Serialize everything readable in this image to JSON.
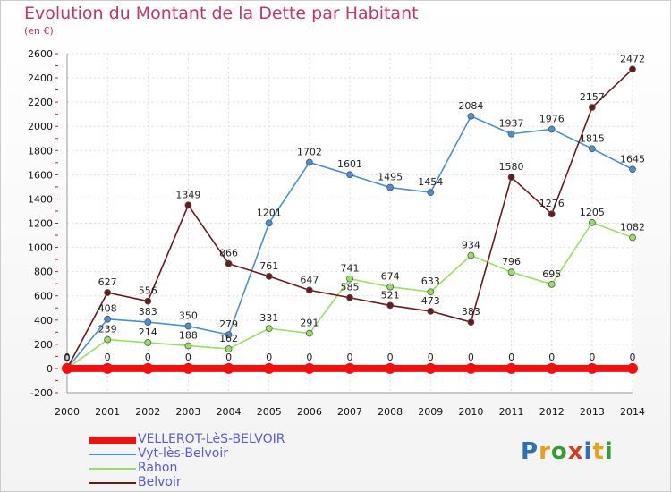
{
  "title": "Evolution du Montant de la Dette par Habitant",
  "subtitle": "(en €)",
  "logo": {
    "text": "Proxiti",
    "letter_colors": [
      "#2f6fb5",
      "#e8a020",
      "#3a9a3a",
      "#d04020",
      "#2f6fb5",
      "#e8a020",
      "#3a9a3a"
    ]
  },
  "chart_data": {
    "type": "line",
    "title": "Evolution du Montant de la Dette par Habitant",
    "subtitle": "(en €)",
    "xlabel": "",
    "ylabel": "",
    "x": [
      "2000",
      "2001",
      "2002",
      "2003",
      "2004",
      "2005",
      "2006",
      "2007",
      "2008",
      "2009",
      "2010",
      "2011",
      "2012",
      "2013",
      "2014"
    ],
    "ylim": [
      -200,
      2600
    ],
    "yticks": [
      -200,
      0,
      200,
      400,
      600,
      800,
      1000,
      1200,
      1400,
      1600,
      1800,
      2000,
      2200,
      2400,
      2600
    ],
    "grid": true,
    "legend_position": "bottom-left",
    "series": [
      {
        "name": "VELLEROT-LèS-BELVOIR",
        "color": "#ee1111",
        "values": [
          0,
          0,
          0,
          0,
          0,
          0,
          0,
          0,
          0,
          0,
          0,
          0,
          0,
          0,
          0
        ]
      },
      {
        "name": "Vyt-lès-Belvoir",
        "color": "#4d8fd1",
        "values": [
          0,
          408,
          383,
          350,
          279,
          1201,
          1702,
          1601,
          1495,
          1454,
          2084,
          1937,
          1976,
          1815,
          1645
        ]
      },
      {
        "name": "Rahon",
        "color": "#99dd66",
        "values": [
          0,
          239,
          214,
          188,
          162,
          331,
          291,
          741,
          674,
          633,
          934,
          796,
          695,
          1205,
          1082
        ]
      },
      {
        "name": "Belvoir",
        "color": "#6b1a1a",
        "values": [
          0,
          627,
          556,
          1349,
          866,
          761,
          647,
          585,
          521,
          473,
          383,
          1580,
          1276,
          2157,
          2472
        ]
      }
    ]
  }
}
